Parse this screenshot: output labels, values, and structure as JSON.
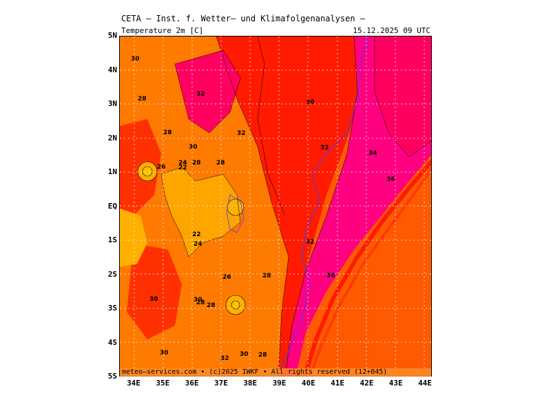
{
  "header": {
    "title": "CETA — Inst. f. Wetter— und Klimafolgenanalysen —",
    "variable": "Temperature 2m [C]",
    "valid_time": "15.12.2025 09 UTC"
  },
  "footer": {
    "copyright": "meteo—services.com • (c)2025 IWKF • All rights reserved (12+045)"
  },
  "axes": {
    "lat_labels": [
      "5N",
      "4N",
      "3N",
      "2N",
      "1N",
      "EQ",
      "1S",
      "2S",
      "3S",
      "4S",
      "5S"
    ],
    "lon_labels": [
      "34E",
      "35E",
      "36E",
      "37E",
      "38E",
      "39E",
      "40E",
      "41E",
      "42E",
      "43E",
      "44E"
    ]
  },
  "map": {
    "colors": {
      "c22": "#ffa500",
      "c24": "#ff9a00",
      "c26": "#ff7a00",
      "c28": "#ff5a00",
      "c30": "#ff1a00",
      "c32": "#ff0040",
      "c34": "#ff0080",
      "c36": "#ff00a0"
    },
    "contour_labels": [
      "30",
      "28",
      "32",
      "28",
      "30",
      "26",
      "24",
      "22",
      "32",
      "28",
      "30",
      "32",
      "34",
      "36",
      "32",
      "28",
      "30",
      "22",
      "24",
      "26",
      "28",
      "30",
      "28",
      "28",
      "30",
      "30",
      "30",
      "28",
      "32"
    ]
  }
}
